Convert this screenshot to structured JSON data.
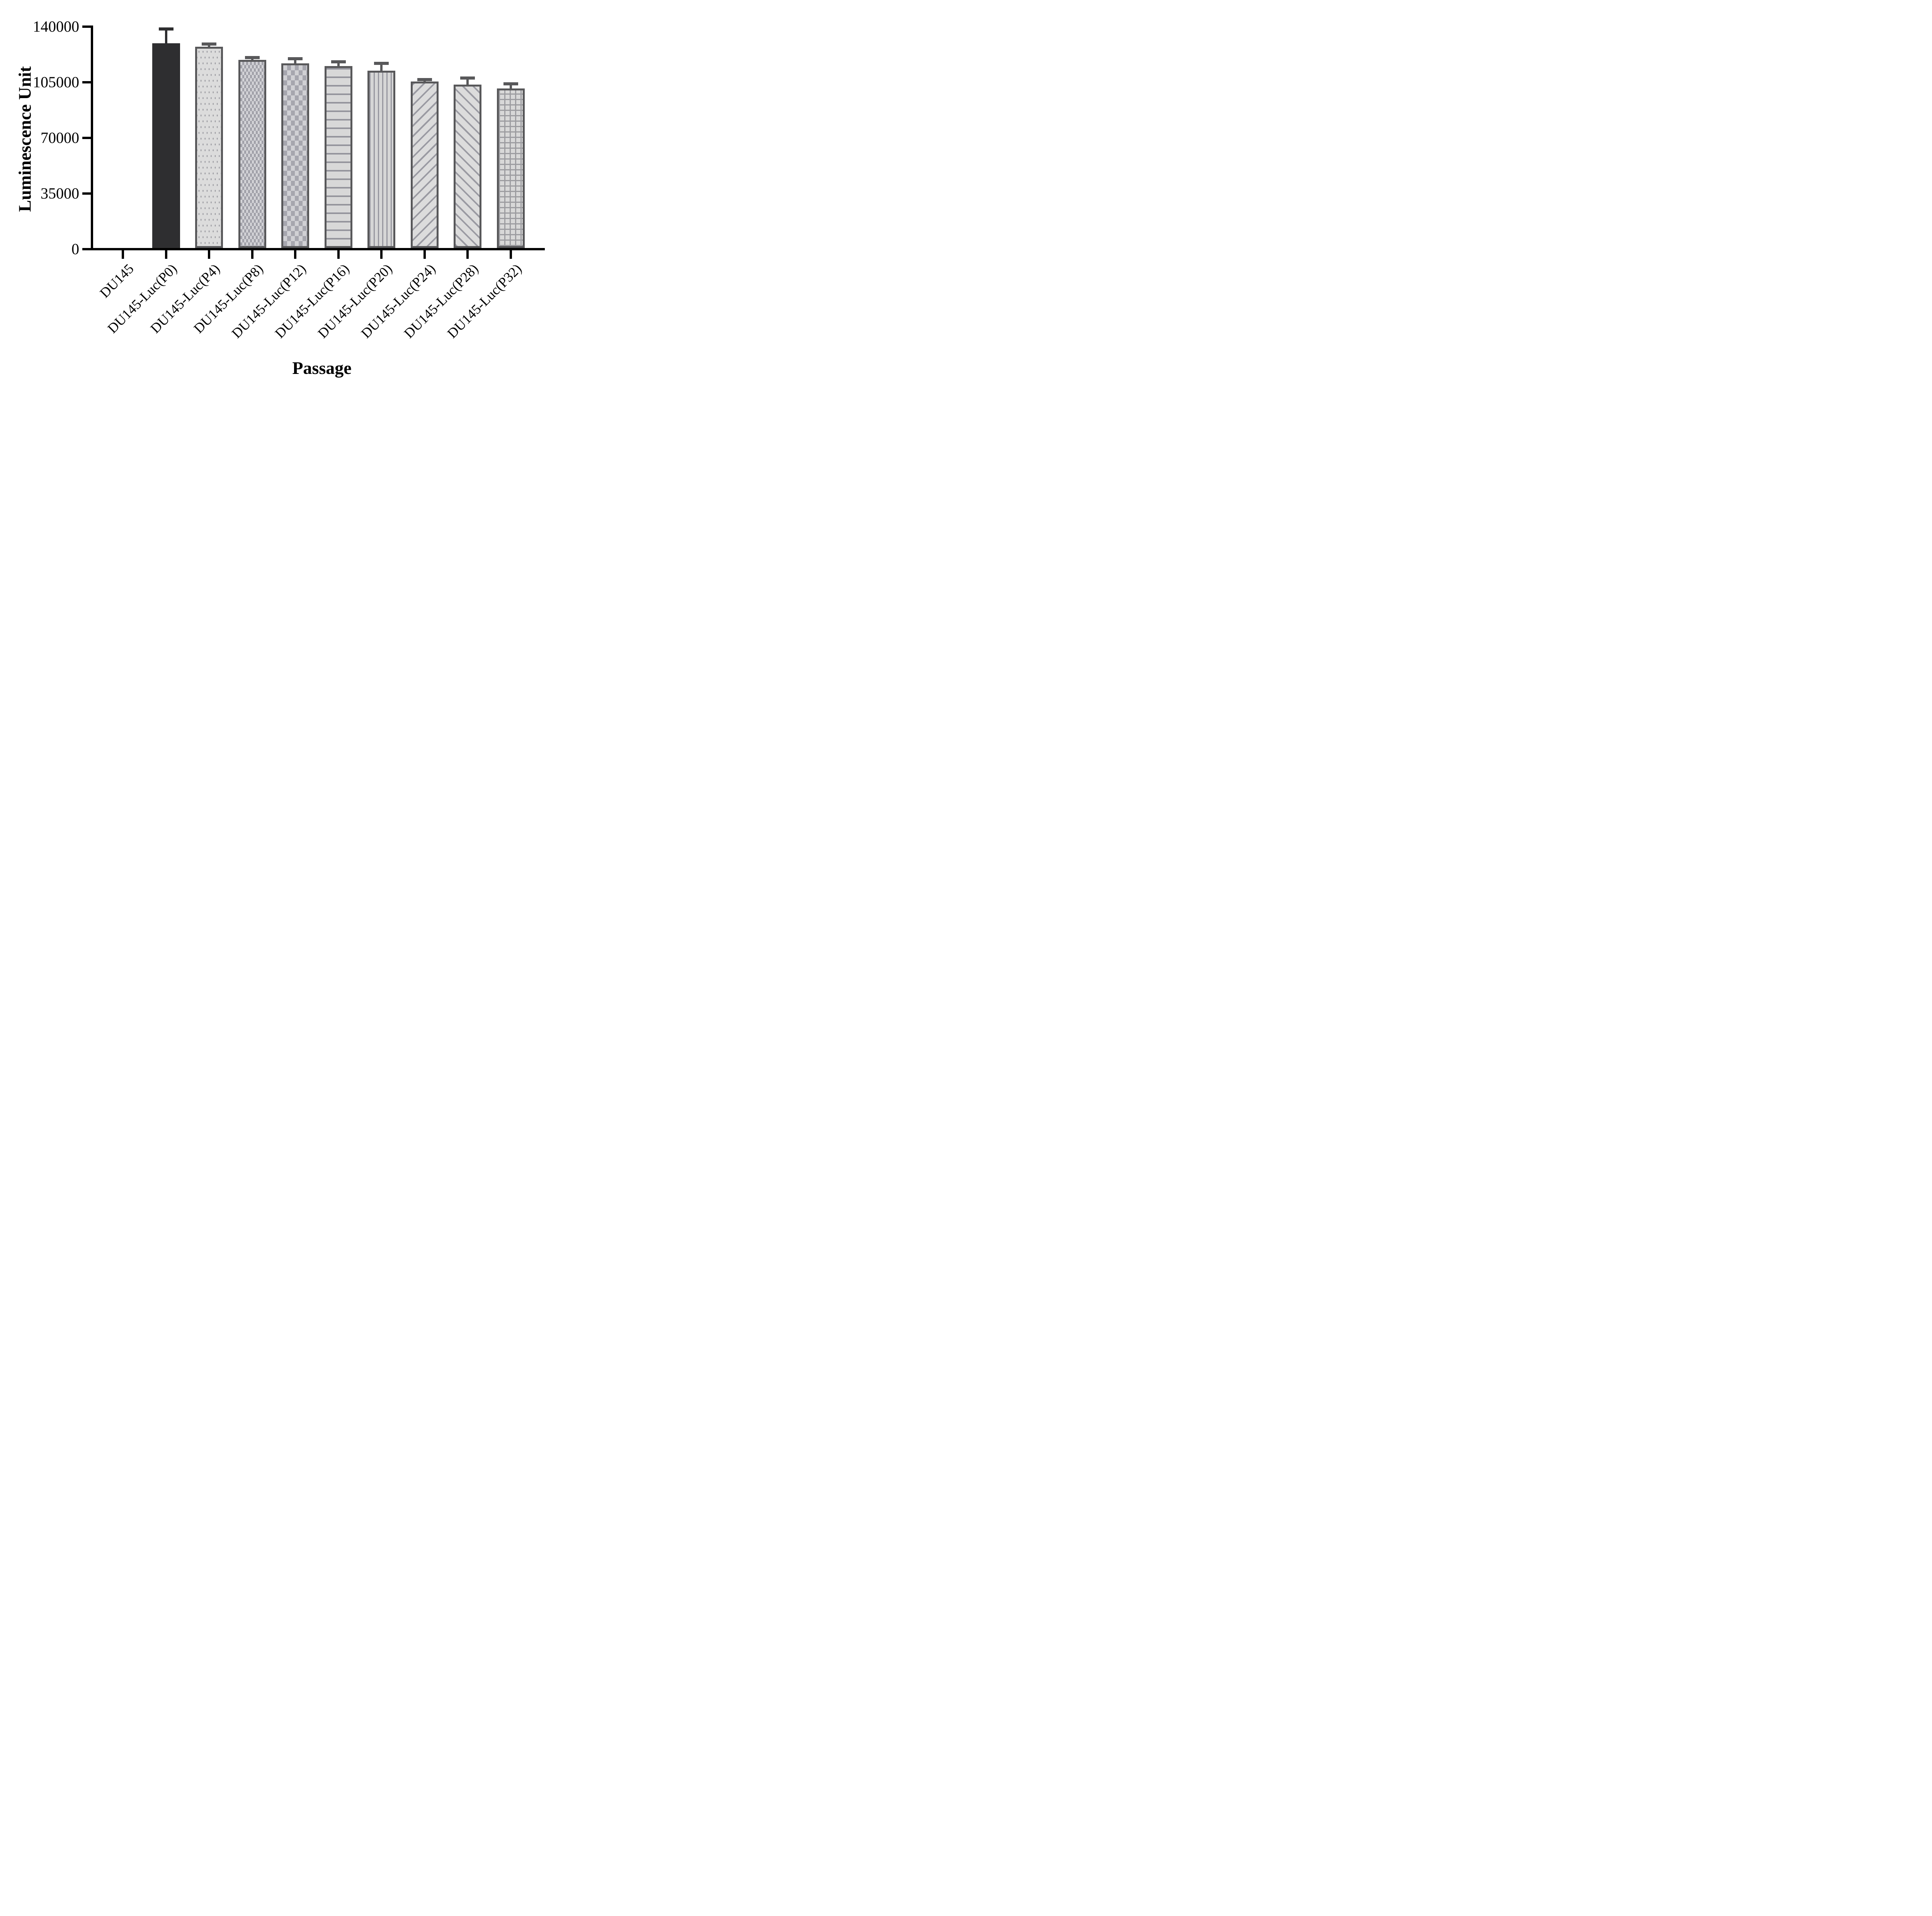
{
  "chart_data": {
    "type": "bar",
    "title": "",
    "xlabel": "Passage",
    "ylabel": "Luminescence Unit",
    "ylim": [
      0,
      140000
    ],
    "yticks": [
      0,
      35000,
      70000,
      105000,
      140000
    ],
    "ytick_labels": [
      "0",
      "35000",
      "70000",
      "105000",
      "140000"
    ],
    "grid": "off",
    "legend": "none",
    "categories": [
      "DU145",
      "DU145-Luc(P0)",
      "DU145-Luc(P4)",
      "DU145-Luc(P8)",
      "DU145-Luc(P12)",
      "DU145-Luc(P16)",
      "DU145-Luc(P20)",
      "DU145-Luc(P24)",
      "DU145-Luc(P28)",
      "DU145-Luc(P32)"
    ],
    "values": [
      0,
      129500,
      127300,
      119100,
      116900,
      115100,
      112400,
      105400,
      103600,
      101000
    ],
    "error_plus": [
      0,
      9000,
      1800,
      1400,
      3000,
      2900,
      4500,
      1300,
      4100,
      3000
    ],
    "bar_patterns": [
      "none",
      "solid-dark",
      "dots",
      "checker-small",
      "checker-large",
      "h-lines",
      "v-lines",
      "diag-up",
      "diag-down",
      "grid"
    ]
  },
  "colors": {
    "bar_dark_fill": "#2e2e30",
    "bar_border": "#58585a",
    "pattern_gray": "#9a9aa2",
    "bar_light_fill": "#d9d9d9",
    "axis": "#000000",
    "background": "#ffffff"
  }
}
